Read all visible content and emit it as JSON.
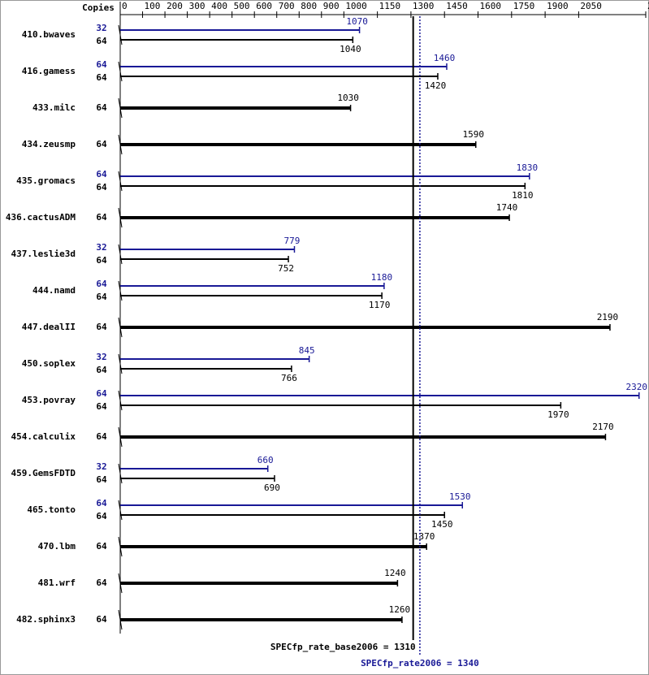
{
  "chart_data": {
    "type": "bar",
    "orientation": "horizontal",
    "copies_header": "Copies",
    "categories": [
      "410.bwaves",
      "416.gamess",
      "433.milc",
      "434.zeusmp",
      "435.gromacs",
      "436.cactusADM",
      "437.leslie3d",
      "444.namd",
      "447.dealII",
      "450.soplex",
      "453.povray",
      "454.calculix",
      "459.GemsFDTD",
      "465.tonto",
      "470.lbm",
      "481.wrf",
      "482.sphinx3"
    ],
    "series": [
      {
        "color": "#000000",
        "copies": [
          64,
          64,
          64,
          64,
          64,
          64,
          64,
          64,
          64,
          64,
          64,
          64,
          64,
          64,
          64,
          64,
          64
        ],
        "values": [
          1040,
          1420,
          1030,
          1590,
          1810,
          1740,
          752,
          1170,
          2190,
          766,
          1970,
          2170,
          690,
          1450,
          1370,
          1240,
          1260
        ]
      },
      {
        "color": "#191996",
        "copies": [
          32,
          64,
          null,
          null,
          64,
          null,
          32,
          64,
          null,
          32,
          64,
          null,
          32,
          64,
          null,
          null,
          null
        ],
        "values": [
          1070,
          1460,
          null,
          null,
          1830,
          null,
          779,
          1180,
          null,
          845,
          2320,
          null,
          660,
          1530,
          null,
          null,
          null
        ]
      }
    ],
    "xlim": [
      0,
      2350
    ],
    "xticks": [
      0,
      100,
      200,
      300,
      400,
      500,
      600,
      700,
      800,
      900,
      1000,
      1150,
      1300,
      1450,
      1600,
      1750,
      1900,
      2050,
      2350
    ],
    "reference_lines": [
      {
        "label": "SPECfp_rate_base2006 = 1310",
        "value": 1310,
        "color": "#000000",
        "style": "solid"
      },
      {
        "label": "SPECfp_rate2006 = 1340",
        "value": 1340,
        "color": "#191996",
        "style": "dotted"
      }
    ]
  }
}
